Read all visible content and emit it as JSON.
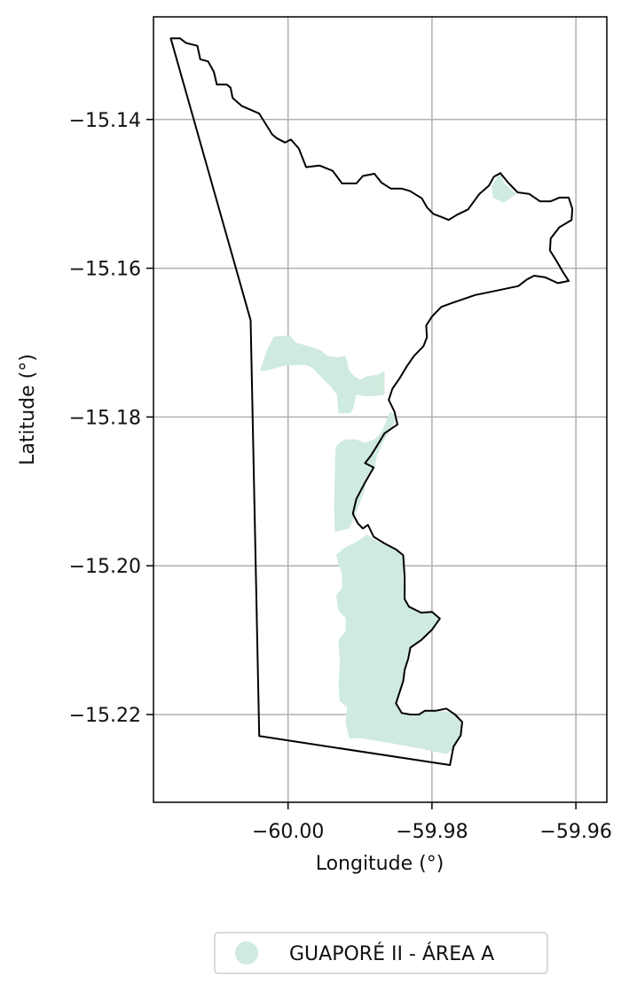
{
  "chart_data": {
    "type": "map",
    "xlabel": "Longitude (°)",
    "ylabel": "Latitude (°)",
    "xlim": [
      -60.0187,
      -59.9557
    ],
    "ylim": [
      -15.2318,
      -15.1262
    ],
    "grid": true,
    "x_ticks": [
      {
        "value": -60.0,
        "label": "−60.00"
      },
      {
        "value": -59.98,
        "label": "−59.98"
      },
      {
        "value": -59.96,
        "label": "−59.96"
      }
    ],
    "y_ticks": [
      {
        "value": -15.14,
        "label": "−15.14"
      },
      {
        "value": -15.16,
        "label": "−15.16"
      },
      {
        "value": -15.18,
        "label": "−15.18"
      },
      {
        "value": -15.2,
        "label": "−15.20"
      },
      {
        "value": -15.22,
        "label": "−15.22"
      }
    ],
    "legend": {
      "placement": "bottom-center",
      "entries": [
        {
          "label": "GUAPORÉ II - ÁREA A",
          "color": "#cfeade"
        }
      ]
    },
    "colors": {
      "boundary": "#000000",
      "area_fill": "#cfeade",
      "grid": "#b0b0b0"
    },
    "boundary": [
      [
        -60.0163,
        -15.1291
      ],
      [
        -60.015,
        -15.1291
      ],
      [
        -60.0142,
        -15.1297
      ],
      [
        -60.0126,
        -15.1301
      ],
      [
        -60.0122,
        -15.1319
      ],
      [
        -60.0111,
        -15.1322
      ],
      [
        -60.0103,
        -15.1336
      ],
      [
        -60.0099,
        -15.1353
      ],
      [
        -60.0085,
        -15.1353
      ],
      [
        -60.008,
        -15.1357
      ],
      [
        -60.0077,
        -15.1371
      ],
      [
        -60.0064,
        -15.1382
      ],
      [
        -60.004,
        -15.1392
      ],
      [
        -60.0022,
        -15.142
      ],
      [
        -60.0016,
        -15.1425
      ],
      [
        -60.0004,
        -15.1431
      ],
      [
        -59.9996,
        -15.1427
      ],
      [
        -59.9985,
        -15.1439
      ],
      [
        -59.9975,
        -15.1464
      ],
      [
        -59.9956,
        -15.1462
      ],
      [
        -59.9938,
        -15.1469
      ],
      [
        -59.9925,
        -15.1486
      ],
      [
        -59.9905,
        -15.1486
      ],
      [
        -59.9896,
        -15.1476
      ],
      [
        -59.988,
        -15.1473
      ],
      [
        -59.987,
        -15.1485
      ],
      [
        -59.9857,
        -15.1493
      ],
      [
        -59.9842,
        -15.1493
      ],
      [
        -59.9831,
        -15.1496
      ],
      [
        -59.9814,
        -15.1506
      ],
      [
        -59.9807,
        -15.1518
      ],
      [
        -59.9798,
        -15.1527
      ],
      [
        -59.9787,
        -15.1531
      ],
      [
        -59.9777,
        -15.1535
      ],
      [
        -59.9765,
        -15.1528
      ],
      [
        -59.975,
        -15.1521
      ],
      [
        -59.9734,
        -15.15
      ],
      [
        -59.9721,
        -15.1489
      ],
      [
        -59.9714,
        -15.1477
      ],
      [
        -59.9705,
        -15.1472
      ],
      [
        -59.9695,
        -15.1484
      ],
      [
        -59.9681,
        -15.1498
      ],
      [
        -59.9665,
        -15.15
      ],
      [
        -59.965,
        -15.151
      ],
      [
        -59.9635,
        -15.151
      ],
      [
        -59.9623,
        -15.1505
      ],
      [
        -59.961,
        -15.1505
      ],
      [
        -59.9605,
        -15.152
      ],
      [
        -59.9606,
        -15.1535
      ],
      [
        -59.9623,
        -15.1545
      ],
      [
        -59.9635,
        -15.156
      ],
      [
        -59.9636,
        -15.1576
      ],
      [
        -59.9627,
        -15.159
      ],
      [
        -59.9618,
        -15.1605
      ],
      [
        -59.961,
        -15.1617
      ],
      [
        -59.9625,
        -15.162
      ],
      [
        -59.9643,
        -15.1612
      ],
      [
        -59.9658,
        -15.161
      ],
      [
        -59.9668,
        -15.1615
      ],
      [
        -59.968,
        -15.1624
      ],
      [
        -59.971,
        -15.163
      ],
      [
        -59.974,
        -15.1636
      ],
      [
        -59.977,
        -15.1646
      ],
      [
        -59.9787,
        -15.1652
      ],
      [
        -59.98,
        -15.1665
      ],
      [
        -59.9808,
        -15.1677
      ],
      [
        -59.9807,
        -15.1693
      ],
      [
        -59.9812,
        -15.1705
      ],
      [
        -59.9825,
        -15.1718
      ],
      [
        -59.9835,
        -15.1732
      ],
      [
        -59.9845,
        -15.1748
      ],
      [
        -59.9855,
        -15.1762
      ],
      [
        -59.986,
        -15.1777
      ],
      [
        -59.9852,
        -15.1793
      ],
      [
        -59.9848,
        -15.181
      ],
      [
        -59.9866,
        -15.1822
      ],
      [
        -59.9876,
        -15.1838
      ],
      [
        -59.9885,
        -15.1852
      ],
      [
        -59.9893,
        -15.1862
      ],
      [
        -59.9881,
        -15.1868
      ],
      [
        -59.9893,
        -15.1888
      ],
      [
        -59.9905,
        -15.191
      ],
      [
        -59.991,
        -15.193
      ],
      [
        -59.9903,
        -15.1943
      ],
      [
        -59.9896,
        -15.195
      ],
      [
        -59.9889,
        -15.1945
      ],
      [
        -59.9881,
        -15.1961
      ],
      [
        -59.9866,
        -15.197
      ],
      [
        -59.985,
        -15.1978
      ],
      [
        -59.984,
        -15.1986
      ],
      [
        -59.9838,
        -15.2015
      ],
      [
        -59.9838,
        -15.2045
      ],
      [
        -59.9832,
        -15.2055
      ],
      [
        -59.9815,
        -15.2063
      ],
      [
        -59.98,
        -15.2062
      ],
      [
        -59.9789,
        -15.2071
      ],
      [
        -59.98,
        -15.2086
      ],
      [
        -59.9815,
        -15.21
      ],
      [
        -59.983,
        -15.211
      ],
      [
        -59.9833,
        -15.2125
      ],
      [
        -59.9838,
        -15.214
      ],
      [
        -59.984,
        -15.2155
      ],
      [
        -59.9845,
        -15.217
      ],
      [
        -59.985,
        -15.2185
      ],
      [
        -59.9842,
        -15.2198
      ],
      [
        -59.983,
        -15.22
      ],
      [
        -59.9818,
        -15.22
      ],
      [
        -59.981,
        -15.2195
      ],
      [
        -59.9795,
        -15.2195
      ],
      [
        -59.978,
        -15.2192
      ],
      [
        -59.9768,
        -15.22
      ],
      [
        -59.9758,
        -15.221
      ],
      [
        -59.976,
        -15.2228
      ],
      [
        -59.977,
        -15.2243
      ],
      [
        -59.9775,
        -15.2268
      ],
      [
        -60.004,
        -15.2229
      ],
      [
        -60.0052,
        -15.167
      ],
      [
        -60.0163,
        -15.1291
      ]
    ],
    "area_a": [
      [
        [
          -60.0039,
          -15.1738
        ],
        [
          -60.003,
          -15.1712
        ],
        [
          -60.002,
          -15.1692
        ],
        [
          -59.9998,
          -15.169
        ],
        [
          -59.9989,
          -15.17
        ],
        [
          -59.997,
          -15.1705
        ],
        [
          -59.9955,
          -15.171
        ],
        [
          -59.9945,
          -15.1718
        ],
        [
          -59.993,
          -15.172
        ],
        [
          -59.992,
          -15.1718
        ],
        [
          -59.9915,
          -15.1738
        ],
        [
          -59.9908,
          -15.1745
        ],
        [
          -59.99,
          -15.175
        ],
        [
          -59.989,
          -15.1745
        ],
        [
          -59.9875,
          -15.1743
        ],
        [
          -59.9866,
          -15.1738
        ],
        [
          -59.9866,
          -15.177
        ],
        [
          -59.988,
          -15.1772
        ],
        [
          -59.9892,
          -15.1772
        ],
        [
          -59.9905,
          -15.177
        ],
        [
          -59.991,
          -15.179
        ],
        [
          -59.9914,
          -15.1795
        ],
        [
          -59.993,
          -15.1795
        ],
        [
          -59.9932,
          -15.177
        ],
        [
          -59.994,
          -15.176
        ],
        [
          -59.9955,
          -15.1745
        ],
        [
          -59.9965,
          -15.1735
        ],
        [
          -59.9975,
          -15.173
        ],
        [
          -59.999,
          -15.173
        ],
        [
          -60.0005,
          -15.1731
        ],
        [
          -60.002,
          -15.1735
        ],
        [
          -60.003,
          -15.1738
        ]
      ],
      [
        [
          -59.9934,
          -15.184
        ],
        [
          -59.9935,
          -15.188
        ],
        [
          -59.9936,
          -15.192
        ],
        [
          -59.9935,
          -15.1955
        ],
        [
          -59.9925,
          -15.1952
        ],
        [
          -59.9915,
          -15.195
        ],
        [
          -59.9908,
          -15.1935
        ],
        [
          -59.99,
          -15.1915
        ],
        [
          -59.9894,
          -15.19
        ],
        [
          -59.989,
          -15.188
        ],
        [
          -59.988,
          -15.1868
        ],
        [
          -59.9876,
          -15.185
        ],
        [
          -59.9866,
          -15.183
        ],
        [
          -59.9856,
          -15.1815
        ],
        [
          -59.9848,
          -15.18
        ],
        [
          -59.9858,
          -15.1793
        ],
        [
          -59.987,
          -15.182
        ],
        [
          -59.988,
          -15.183
        ],
        [
          -59.9893,
          -15.1835
        ],
        [
          -59.9905,
          -15.183
        ],
        [
          -59.9918,
          -15.183
        ],
        [
          -59.9925,
          -15.1832
        ]
      ],
      [
        [
          -59.9933,
          -15.1985
        ],
        [
          -59.992,
          -15.1975
        ],
        [
          -59.9905,
          -15.1968
        ],
        [
          -59.989,
          -15.1958
        ],
        [
          -59.988,
          -15.1965
        ],
        [
          -59.9865,
          -15.1972
        ],
        [
          -59.9848,
          -15.198
        ],
        [
          -59.984,
          -15.199
        ],
        [
          -59.984,
          -15.202
        ],
        [
          -59.9838,
          -15.2045
        ],
        [
          -59.983,
          -15.2055
        ],
        [
          -59.9815,
          -15.2063
        ],
        [
          -59.98,
          -15.2062
        ],
        [
          -59.979,
          -15.207
        ],
        [
          -59.98,
          -15.2086
        ],
        [
          -59.9815,
          -15.21
        ],
        [
          -59.983,
          -15.211
        ],
        [
          -59.9835,
          -15.2125
        ],
        [
          -59.9838,
          -15.214
        ],
        [
          -59.984,
          -15.216
        ],
        [
          -59.9845,
          -15.2175
        ],
        [
          -59.985,
          -15.2188
        ],
        [
          -59.9842,
          -15.2198
        ],
        [
          -59.9825,
          -15.22
        ],
        [
          -59.981,
          -15.2196
        ],
        [
          -59.979,
          -15.2195
        ],
        [
          -59.977,
          -15.2198
        ],
        [
          -59.9758,
          -15.221
        ],
        [
          -59.976,
          -15.2228
        ],
        [
          -59.9768,
          -15.2245
        ],
        [
          -59.978,
          -15.2253
        ],
        [
          -59.982,
          -15.2245
        ],
        [
          -59.986,
          -15.2238
        ],
        [
          -59.99,
          -15.2232
        ],
        [
          -59.9915,
          -15.2232
        ],
        [
          -59.992,
          -15.2212
        ],
        [
          -59.9918,
          -15.219
        ],
        [
          -59.9928,
          -15.2182
        ],
        [
          -59.993,
          -15.216
        ],
        [
          -59.9928,
          -15.213
        ],
        [
          -59.993,
          -15.21
        ],
        [
          -59.992,
          -15.2088
        ],
        [
          -59.992,
          -15.207
        ],
        [
          -59.993,
          -15.206
        ],
        [
          -59.9933,
          -15.204
        ],
        [
          -59.9925,
          -15.203
        ],
        [
          -59.9925,
          -15.201
        ],
        [
          -59.993,
          -15.1998
        ]
      ],
      [
        [
          -59.9705,
          -15.147
        ],
        [
          -59.97,
          -15.1485
        ],
        [
          -59.9683,
          -15.15
        ],
        [
          -59.97,
          -15.1512
        ],
        [
          -59.9715,
          -15.1505
        ],
        [
          -59.9717,
          -15.149
        ]
      ]
    ]
  }
}
